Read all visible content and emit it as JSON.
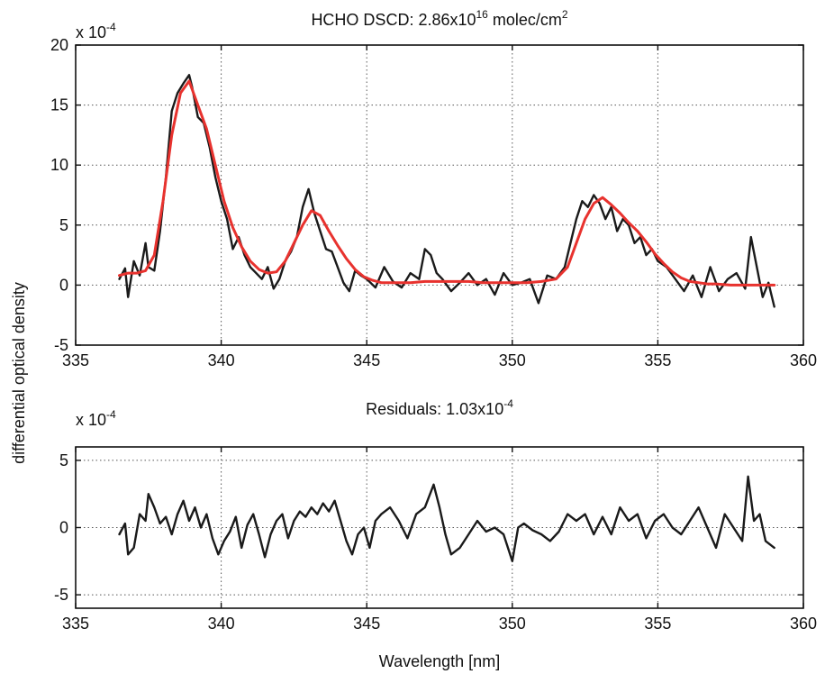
{
  "chart_data": [
    {
      "type": "line",
      "title_parts": {
        "prefix": "HCHO DSCD: 2.86x10",
        "exponent": "16",
        "unit": " molec/cm",
        "unit_exponent": "2"
      },
      "xlabel": "",
      "ylabel": "differential optical density",
      "scale_factor": {
        "base": "x 10",
        "exponent": "-4"
      },
      "xlim": [
        335,
        360
      ],
      "ylim": [
        -5,
        20
      ],
      "xticks": [
        335,
        340,
        345,
        350,
        355,
        360
      ],
      "yticks": [
        -5,
        0,
        5,
        10,
        15,
        20
      ],
      "grid": true,
      "series": [
        {
          "color": "#1a1a1a",
          "style": "measured",
          "x": [
            336.5,
            336.7,
            336.8,
            337.0,
            337.2,
            337.4,
            337.5,
            337.7,
            337.9,
            338.1,
            338.3,
            338.5,
            338.7,
            338.9,
            339.0,
            339.2,
            339.4,
            339.6,
            339.8,
            340.0,
            340.2,
            340.4,
            340.6,
            340.8,
            341.0,
            341.2,
            341.4,
            341.6,
            341.8,
            342.0,
            342.2,
            342.4,
            342.6,
            342.8,
            343.0,
            343.2,
            343.4,
            343.6,
            343.8,
            344.0,
            344.2,
            344.4,
            344.6,
            344.8,
            345.0,
            345.3,
            345.6,
            345.9,
            346.2,
            346.5,
            346.8,
            347.0,
            347.2,
            347.4,
            347.6,
            347.9,
            348.2,
            348.5,
            348.8,
            349.1,
            349.4,
            349.7,
            350.0,
            350.3,
            350.6,
            350.9,
            351.2,
            351.5,
            351.8,
            352.0,
            352.2,
            352.4,
            352.6,
            352.8,
            353.0,
            353.2,
            353.4,
            353.6,
            353.8,
            354.0,
            354.2,
            354.4,
            354.6,
            354.8,
            355.0,
            355.3,
            355.6,
            355.9,
            356.2,
            356.5,
            356.8,
            357.1,
            357.4,
            357.7,
            358.0,
            358.2,
            358.4,
            358.6,
            358.8,
            359.0
          ],
          "y": [
            0.5,
            1.4,
            -1.0,
            2.0,
            0.8,
            3.5,
            1.5,
            1.2,
            4.5,
            9.0,
            14.5,
            16.0,
            16.8,
            17.5,
            16.5,
            14.0,
            13.5,
            11.5,
            9.0,
            7.0,
            5.5,
            3.0,
            4.0,
            2.5,
            1.5,
            1.0,
            0.5,
            1.5,
            -0.3,
            0.5,
            2.0,
            2.8,
            4.0,
            6.5,
            8.0,
            6.0,
            4.5,
            3.0,
            2.8,
            1.5,
            0.2,
            -0.5,
            1.2,
            0.8,
            0.5,
            -0.2,
            1.5,
            0.3,
            -0.2,
            1.0,
            0.5,
            3.0,
            2.5,
            1.0,
            0.5,
            -0.5,
            0.2,
            1.0,
            0.0,
            0.5,
            -0.8,
            1.0,
            0.0,
            0.2,
            0.5,
            -1.5,
            0.8,
            0.5,
            1.5,
            3.5,
            5.5,
            7.0,
            6.5,
            7.5,
            6.8,
            5.5,
            6.5,
            4.5,
            5.5,
            5.0,
            3.5,
            4.0,
            2.5,
            3.0,
            2.0,
            1.5,
            0.5,
            -0.5,
            0.8,
            -1.0,
            1.5,
            -0.5,
            0.5,
            1.0,
            -0.3,
            4.0,
            1.5,
            -1.0,
            0.2,
            -1.8
          ]
        },
        {
          "color": "#e8322e",
          "style": "fit",
          "x": [
            336.5,
            336.8,
            337.1,
            337.4,
            337.7,
            338.0,
            338.3,
            338.6,
            338.9,
            339.2,
            339.5,
            339.8,
            340.1,
            340.4,
            340.7,
            341.0,
            341.3,
            341.6,
            341.9,
            342.2,
            342.5,
            342.8,
            343.1,
            343.4,
            343.7,
            344.0,
            344.3,
            344.6,
            344.9,
            345.2,
            345.5,
            346.0,
            346.5,
            347.0,
            347.5,
            348.0,
            348.5,
            349.0,
            349.5,
            350.0,
            350.5,
            351.0,
            351.5,
            351.9,
            352.2,
            352.5,
            352.8,
            353.1,
            353.4,
            353.7,
            354.0,
            354.3,
            354.6,
            354.9,
            355.2,
            355.5,
            355.8,
            356.1,
            356.4,
            356.7,
            357.0,
            357.5,
            358.0,
            358.5,
            359.0
          ],
          "y": [
            0.8,
            1.0,
            1.0,
            1.2,
            2.5,
            7.0,
            12.5,
            16.0,
            17.0,
            15.0,
            13.0,
            10.0,
            7.0,
            4.8,
            3.2,
            2.0,
            1.3,
            1.0,
            1.1,
            2.0,
            3.5,
            5.0,
            6.2,
            5.8,
            4.5,
            3.3,
            2.2,
            1.3,
            0.7,
            0.4,
            0.2,
            0.2,
            0.2,
            0.3,
            0.3,
            0.3,
            0.3,
            0.2,
            0.2,
            0.2,
            0.2,
            0.3,
            0.5,
            1.5,
            3.5,
            5.5,
            6.8,
            7.3,
            6.7,
            6.0,
            5.2,
            4.5,
            3.6,
            2.6,
            1.8,
            1.1,
            0.6,
            0.3,
            0.2,
            0.1,
            0.1,
            0.0,
            0.0,
            0.0,
            0.0
          ]
        }
      ]
    },
    {
      "type": "line",
      "title_parts": {
        "prefix": "Residuals: 1.03x10",
        "exponent": "-4"
      },
      "xlabel": "Wavelength [nm]",
      "ylabel": "",
      "scale_factor": {
        "base": "x 10",
        "exponent": "-4"
      },
      "xlim": [
        335,
        360
      ],
      "ylim": [
        -6,
        6
      ],
      "xticks": [
        335,
        340,
        345,
        350,
        355,
        360
      ],
      "yticks": [
        -5,
        0,
        5
      ],
      "grid": true,
      "series": [
        {
          "color": "#1a1a1a",
          "style": "residual",
          "x": [
            336.5,
            336.7,
            336.8,
            337.0,
            337.2,
            337.4,
            337.5,
            337.7,
            337.9,
            338.1,
            338.3,
            338.5,
            338.7,
            338.9,
            339.1,
            339.3,
            339.5,
            339.7,
            339.9,
            340.1,
            340.3,
            340.5,
            340.7,
            340.9,
            341.1,
            341.3,
            341.5,
            341.7,
            341.9,
            342.1,
            342.3,
            342.5,
            342.7,
            342.9,
            343.1,
            343.3,
            343.5,
            343.7,
            343.9,
            344.1,
            344.3,
            344.5,
            344.7,
            344.9,
            345.1,
            345.3,
            345.5,
            345.8,
            346.1,
            346.4,
            346.7,
            347.0,
            347.3,
            347.5,
            347.7,
            347.9,
            348.2,
            348.5,
            348.8,
            349.1,
            349.4,
            349.7,
            350.0,
            350.2,
            350.4,
            350.7,
            351.0,
            351.3,
            351.6,
            351.9,
            352.2,
            352.5,
            352.8,
            353.1,
            353.4,
            353.7,
            354.0,
            354.3,
            354.6,
            354.9,
            355.2,
            355.5,
            355.8,
            356.1,
            356.4,
            356.7,
            357.0,
            357.3,
            357.6,
            357.9,
            358.1,
            358.3,
            358.5,
            358.7,
            359.0
          ],
          "y": [
            -0.5,
            0.3,
            -2.0,
            -1.5,
            1.0,
            0.5,
            2.5,
            1.5,
            0.3,
            0.8,
            -0.5,
            1.0,
            2.0,
            0.5,
            1.5,
            0.0,
            1.0,
            -0.8,
            -2.0,
            -1.0,
            -0.3,
            0.8,
            -1.5,
            0.2,
            1.0,
            -0.5,
            -2.2,
            -0.5,
            0.5,
            1.0,
            -0.8,
            0.5,
            1.2,
            0.8,
            1.5,
            1.0,
            1.8,
            1.2,
            2.0,
            0.5,
            -1.0,
            -2.0,
            -0.5,
            0.0,
            -1.5,
            0.5,
            1.0,
            1.5,
            0.5,
            -0.8,
            1.0,
            1.5,
            3.2,
            1.5,
            -0.5,
            -2.0,
            -1.5,
            -0.5,
            0.5,
            -0.3,
            0.0,
            -0.5,
            -2.5,
            0.0,
            0.3,
            -0.2,
            -0.5,
            -1.0,
            -0.3,
            1.0,
            0.5,
            1.0,
            -0.5,
            0.8,
            -0.5,
            1.5,
            0.5,
            1.0,
            -0.8,
            0.5,
            1.0,
            0.0,
            -0.5,
            0.5,
            1.5,
            0.0,
            -1.5,
            1.0,
            0.0,
            -1.0,
            3.8,
            0.5,
            1.0,
            -1.0,
            -1.5
          ]
        }
      ]
    }
  ]
}
